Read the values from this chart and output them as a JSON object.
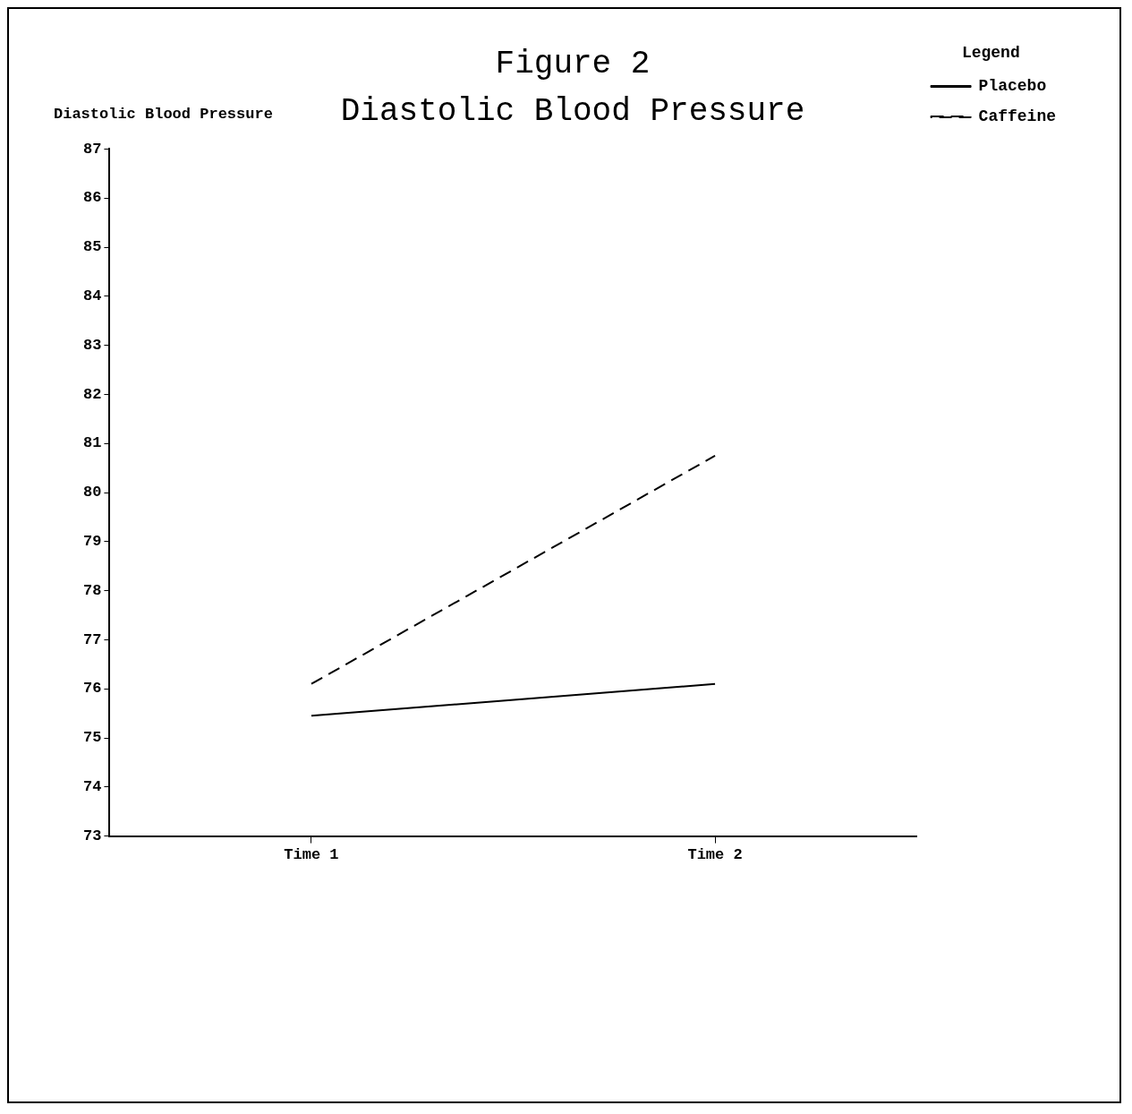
{
  "chart_data": {
    "type": "line",
    "title": "Figure 2",
    "subtitle": "Diastolic Blood Pressure",
    "ylabel": "Diastolic Blood Pressure",
    "legend_title": "Legend",
    "categories": [
      "Time 1",
      "Time 2"
    ],
    "series": [
      {
        "name": "Placebo",
        "color": "#000000",
        "values": [
          75.45,
          76.1
        ],
        "line_style": "solid"
      },
      {
        "name": "Caffeine",
        "color": "#000000",
        "values": [
          76.1,
          80.75
        ],
        "line_style": "dashed"
      }
    ],
    "ylim": [
      73,
      87
    ],
    "yticks": [
      73,
      74,
      75,
      76,
      77,
      78,
      79,
      80,
      81,
      82,
      83,
      84,
      85,
      86,
      87
    ],
    "grid": false,
    "legend": "right",
    "marker": "none"
  }
}
